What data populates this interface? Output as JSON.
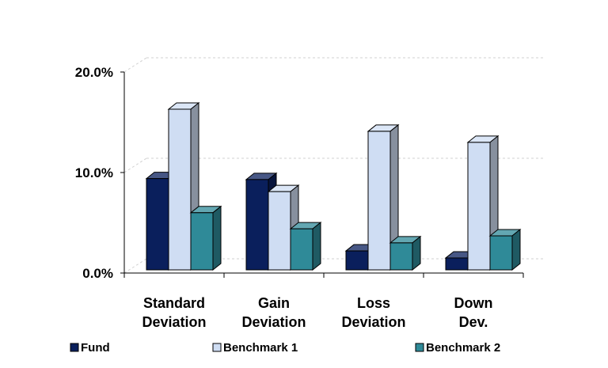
{
  "chart_data": {
    "type": "bar",
    "categories": [
      [
        "Standard",
        "Deviation"
      ],
      [
        "Gain",
        "Deviation"
      ],
      [
        "Loss",
        "Deviation"
      ],
      [
        "Down",
        "Dev."
      ]
    ],
    "series": [
      {
        "name": "Fund",
        "values": [
          9.4,
          9.3,
          2.2,
          1.5
        ],
        "color": "#0a1f5c"
      },
      {
        "name": "Benchmark 1",
        "values": [
          16.3,
          8.1,
          14.1,
          13.0
        ],
        "color": "#cfddf3"
      },
      {
        "name": "Benchmark 2",
        "values": [
          6.0,
          4.4,
          3.0,
          3.7
        ],
        "color": "#2f8a98"
      }
    ],
    "y_ticks": [
      "0.0%",
      "10.0%",
      "20.0%"
    ],
    "ylim": [
      0,
      20
    ],
    "grid": true,
    "legend_position": "bottom",
    "title": "",
    "xlabel": "",
    "ylabel": ""
  }
}
